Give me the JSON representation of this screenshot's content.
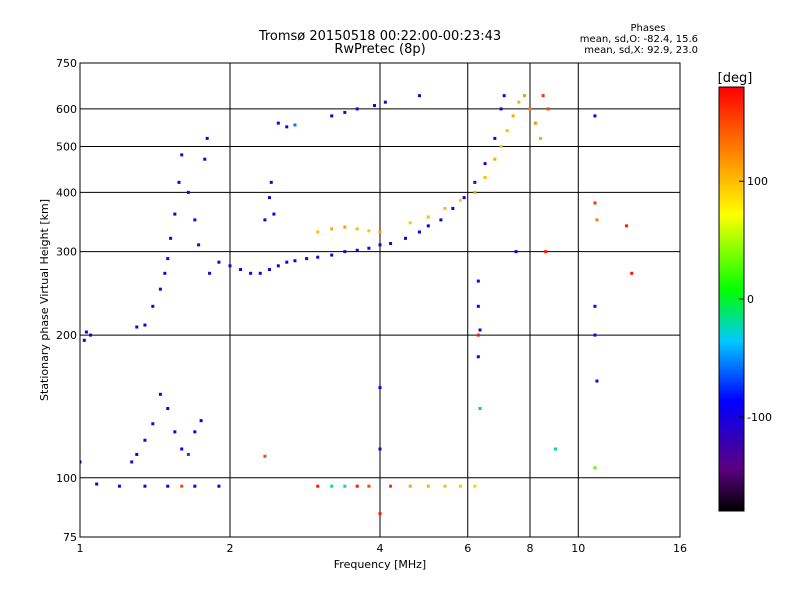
{
  "chart_data": {
    "type": "scatter",
    "title": "Tromsø 20150518 00:22:00-00:23:43",
    "subtitle": "RwPretec (8p)",
    "xlabel": "Frequency [MHz]",
    "ylabel": "Stationary phase Virtual Height [km]",
    "x_scale": "log",
    "y_scale": "log",
    "xlim": [
      1,
      16
    ],
    "ylim": [
      75,
      750
    ],
    "x_ticks": [
      1,
      2,
      4,
      6,
      8,
      10,
      16
    ],
    "y_ticks": [
      75,
      100,
      200,
      300,
      400,
      500,
      600,
      750
    ],
    "grid": true,
    "stats": {
      "header": "Phases",
      "line_o": "mean, sd,O:  -82.4, 15.6",
      "line_x": "mean, sd,X:   92.9, 23.0"
    },
    "colorbar": {
      "label": "[deg]",
      "range": [
        -180,
        180
      ],
      "ticks": [
        100,
        0,
        -100
      ],
      "tick_labels": [
        "100",
        "0",
        "-100"
      ]
    },
    "series": [
      {
        "points": [
          [
            1.0,
            108,
            -100
          ],
          [
            1.02,
            195,
            -100
          ],
          [
            1.03,
            203,
            -95
          ],
          [
            1.05,
            200,
            -95
          ],
          [
            1.08,
            97,
            -100
          ],
          [
            1.2,
            96,
            -100
          ],
          [
            1.35,
            96,
            -100
          ],
          [
            1.5,
            96,
            -95
          ],
          [
            1.7,
            96,
            -100
          ],
          [
            1.9,
            96,
            -100
          ],
          [
            1.27,
            108,
            -110
          ],
          [
            1.3,
            112,
            -110
          ],
          [
            1.35,
            120,
            -110
          ],
          [
            1.4,
            130,
            -105
          ],
          [
            1.45,
            150,
            -105
          ],
          [
            1.5,
            140,
            -100
          ],
          [
            1.55,
            125,
            -95
          ],
          [
            1.6,
            115,
            -85
          ],
          [
            1.65,
            112,
            -70
          ],
          [
            1.7,
            125,
            -90
          ],
          [
            1.75,
            132,
            -95
          ],
          [
            1.3,
            208,
            -100
          ],
          [
            1.35,
            210,
            -100
          ],
          [
            1.4,
            230,
            -105
          ],
          [
            1.45,
            250,
            -105
          ],
          [
            1.48,
            270,
            -110
          ],
          [
            1.5,
            290,
            -105
          ],
          [
            1.52,
            320,
            -105
          ],
          [
            1.55,
            360,
            -105
          ],
          [
            1.58,
            420,
            -100
          ],
          [
            1.6,
            480,
            -105
          ],
          [
            1.65,
            400,
            -105
          ],
          [
            1.7,
            350,
            -110
          ],
          [
            1.73,
            310,
            -110
          ],
          [
            1.78,
            470,
            -105
          ],
          [
            1.8,
            520,
            -100
          ],
          [
            1.82,
            270,
            -110
          ],
          [
            1.9,
            285,
            -105
          ],
          [
            2.0,
            280,
            -105
          ],
          [
            2.1,
            275,
            -105
          ],
          [
            2.2,
            270,
            -100
          ],
          [
            2.3,
            270,
            -100
          ],
          [
            2.4,
            275,
            -100
          ],
          [
            2.5,
            280,
            -95
          ],
          [
            2.6,
            285,
            -95
          ],
          [
            2.7,
            287,
            -100
          ],
          [
            2.85,
            290,
            -105
          ],
          [
            3.0,
            292,
            -110
          ],
          [
            3.2,
            295,
            -110
          ],
          [
            3.4,
            300,
            -105
          ],
          [
            3.6,
            302,
            -105
          ],
          [
            3.8,
            305,
            -105
          ],
          [
            4.0,
            310,
            -100
          ],
          [
            4.2,
            312,
            -100
          ],
          [
            4.5,
            320,
            -100
          ],
          [
            4.8,
            330,
            -90
          ],
          [
            5.0,
            340,
            -90
          ],
          [
            5.3,
            350,
            -95
          ],
          [
            5.6,
            370,
            -100
          ],
          [
            5.9,
            390,
            -100
          ],
          [
            6.2,
            420,
            -105
          ],
          [
            6.5,
            460,
            -105
          ],
          [
            6.8,
            520,
            -110
          ],
          [
            7.0,
            600,
            -110
          ],
          [
            7.1,
            640,
            -105
          ],
          [
            2.35,
            350,
            -100
          ],
          [
            2.4,
            390,
            -100
          ],
          [
            2.42,
            420,
            -95
          ],
          [
            2.45,
            360,
            -105
          ],
          [
            3.2,
            580,
            -100
          ],
          [
            3.4,
            590,
            -110
          ],
          [
            3.6,
            600,
            -105
          ],
          [
            3.9,
            610,
            -95
          ],
          [
            4.1,
            620,
            -100
          ],
          [
            4.8,
            640,
            -110
          ],
          [
            2.5,
            560,
            -85
          ],
          [
            2.7,
            555,
            -55
          ],
          [
            2.6,
            550,
            -100
          ],
          [
            6.3,
            260,
            -100
          ],
          [
            6.3,
            230,
            -100
          ],
          [
            6.35,
            205,
            -90
          ],
          [
            6.3,
            180,
            -100
          ],
          [
            6.35,
            140,
            -40
          ],
          [
            10.8,
            580,
            -100
          ],
          [
            10.8,
            230,
            -100
          ],
          [
            10.8,
            200,
            -100
          ],
          [
            10.9,
            160,
            -105
          ],
          [
            4.0,
            155,
            -100
          ],
          [
            4.0,
            115,
            -110
          ],
          [
            7.5,
            300,
            -100
          ]
        ]
      },
      {
        "points": [
          [
            3.0,
            330,
            100
          ],
          [
            3.2,
            335,
            110
          ],
          [
            3.4,
            338,
            115
          ],
          [
            3.6,
            335,
            100
          ],
          [
            3.8,
            332,
            95
          ],
          [
            4.0,
            330,
            110
          ],
          [
            4.6,
            345,
            95
          ],
          [
            5.0,
            355,
            100
          ],
          [
            5.4,
            370,
            100
          ],
          [
            5.8,
            385,
            95
          ],
          [
            6.2,
            400,
            110
          ],
          [
            6.5,
            430,
            100
          ],
          [
            6.8,
            470,
            110
          ],
          [
            7.0,
            500,
            95
          ],
          [
            7.2,
            540,
            100
          ],
          [
            7.4,
            580,
            110
          ],
          [
            7.6,
            620,
            105
          ],
          [
            7.8,
            640,
            115
          ],
          [
            8.0,
            600,
            130
          ],
          [
            8.2,
            560,
            120
          ],
          [
            8.4,
            520,
            110
          ],
          [
            3.6,
            96,
            170
          ],
          [
            3.8,
            96,
            150
          ],
          [
            4.2,
            96,
            160
          ],
          [
            4.6,
            96,
            110
          ],
          [
            5.0,
            96,
            105
          ],
          [
            5.4,
            96,
            100
          ],
          [
            5.8,
            96,
            95
          ],
          [
            6.2,
            96,
            90
          ],
          [
            3.2,
            96,
            -10
          ],
          [
            3.4,
            96,
            -20
          ],
          [
            3.0,
            96,
            170
          ],
          [
            8.7,
            600,
            150
          ],
          [
            8.5,
            640,
            160
          ],
          [
            6.3,
            200,
            170
          ],
          [
            10.8,
            380,
            160
          ],
          [
            10.9,
            350,
            130
          ],
          [
            12.5,
            340,
            170
          ],
          [
            12.8,
            270,
            170
          ],
          [
            8.6,
            300,
            170
          ],
          [
            2.35,
            111,
            150
          ],
          [
            4.0,
            84,
            170
          ],
          [
            9.0,
            115,
            -25
          ],
          [
            10.8,
            105,
            30
          ],
          [
            1.6,
            96,
            150
          ]
        ]
      }
    ]
  }
}
